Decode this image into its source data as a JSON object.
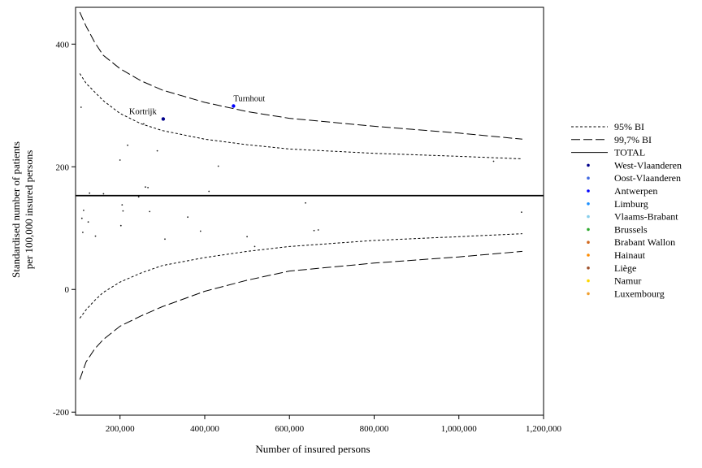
{
  "chart_data": {
    "type": "scatter",
    "title": "",
    "xlabel": "Number of insured persons",
    "ylabel": "Standardised number of patients\nper 100,000 insured persons",
    "xlim": [
      95000,
      1200000
    ],
    "ylim": [
      -205,
      460
    ],
    "xticks": [
      200000,
      400000,
      600000,
      800000,
      1000000,
      1200000
    ],
    "xtick_labels": [
      "200,000",
      "400,000",
      "600,000",
      "800,000",
      "1,000,000",
      "1,200,000"
    ],
    "yticks": [
      400,
      200,
      0,
      -200
    ],
    "ytick_labels": [
      "400",
      "200",
      "0",
      "-200"
    ],
    "grid": false,
    "legend_position": "right",
    "total": 153,
    "lines": [
      {
        "name": "95% BI",
        "style": "dotted",
        "role": "upper",
        "points": [
          [
            105000,
            352
          ],
          [
            120000,
            336
          ],
          [
            140000,
            322
          ],
          [
            160000,
            308
          ],
          [
            200000,
            287
          ],
          [
            250000,
            270
          ],
          [
            300000,
            259
          ],
          [
            400000,
            245
          ],
          [
            500000,
            236
          ],
          [
            600000,
            229
          ],
          [
            800000,
            222
          ],
          [
            1000000,
            217
          ],
          [
            1150000,
            213
          ]
        ]
      },
      {
        "name": "95% BI",
        "style": "dotted",
        "role": "lower",
        "points": [
          [
            105000,
            -47
          ],
          [
            120000,
            -33
          ],
          [
            140000,
            -18
          ],
          [
            160000,
            -5
          ],
          [
            200000,
            12
          ],
          [
            250000,
            27
          ],
          [
            300000,
            39
          ],
          [
            400000,
            52
          ],
          [
            500000,
            62
          ],
          [
            600000,
            70
          ],
          [
            800000,
            80
          ],
          [
            1000000,
            86
          ],
          [
            1150000,
            91
          ]
        ]
      },
      {
        "name": "99,7% BI",
        "style": "dashed",
        "role": "upper",
        "points": [
          [
            105000,
            452
          ],
          [
            120000,
            429
          ],
          [
            140000,
            403
          ],
          [
            160000,
            382
          ],
          [
            200000,
            360
          ],
          [
            250000,
            340
          ],
          [
            300000,
            325
          ],
          [
            400000,
            305
          ],
          [
            500000,
            290
          ],
          [
            600000,
            279
          ],
          [
            800000,
            266
          ],
          [
            1000000,
            255
          ],
          [
            1150000,
            245
          ]
        ]
      },
      {
        "name": "99,7% BI",
        "style": "dashed",
        "role": "lower",
        "points": [
          [
            105000,
            -147
          ],
          [
            120000,
            -118
          ],
          [
            140000,
            -97
          ],
          [
            160000,
            -82
          ],
          [
            200000,
            -60
          ],
          [
            250000,
            -43
          ],
          [
            300000,
            -28
          ],
          [
            400000,
            -3
          ],
          [
            500000,
            15
          ],
          [
            600000,
            30
          ],
          [
            800000,
            43
          ],
          [
            1000000,
            53
          ],
          [
            1150000,
            62
          ]
        ]
      }
    ],
    "series": [
      {
        "name": "West-Vlaanderen",
        "color": "#00008b",
        "points": [
          [
            302000,
            278
          ]
        ]
      },
      {
        "name": "Oost-Vlaanderen",
        "color": "#4169e1",
        "points": []
      },
      {
        "name": "Antwerpen",
        "color": "#0000ff",
        "points": [
          [
            468000,
            299
          ]
        ]
      },
      {
        "name": "Limburg",
        "color": "#1e90ff",
        "points": []
      },
      {
        "name": "Vlaams-Brabant",
        "color": "#87ceeb",
        "points": []
      },
      {
        "name": "Brussels",
        "color": "#2eaa2e",
        "points": []
      },
      {
        "name": "Brabant Wallon",
        "color": "#d2691e",
        "points": []
      },
      {
        "name": "Hainaut",
        "color": "#ff8c00",
        "points": []
      },
      {
        "name": "Liège",
        "color": "#a0522d",
        "points": []
      },
      {
        "name": "Namur",
        "color": "#ffd700",
        "points": []
      },
      {
        "name": "Luxembourg",
        "color": "#f0a030",
        "points": []
      }
    ],
    "other_points": [
      [
        108000,
        297
      ],
      [
        110000,
        116
      ],
      [
        112000,
        93
      ],
      [
        114000,
        129
      ],
      [
        125000,
        110
      ],
      [
        128000,
        157
      ],
      [
        142000,
        87
      ],
      [
        161000,
        156
      ],
      [
        200000,
        211
      ],
      [
        202000,
        104
      ],
      [
        205000,
        138
      ],
      [
        207000,
        128
      ],
      [
        218000,
        235
      ],
      [
        244000,
        151
      ],
      [
        256000,
        270
      ],
      [
        260000,
        167
      ],
      [
        266000,
        166
      ],
      [
        270000,
        127
      ],
      [
        288000,
        226
      ],
      [
        306000,
        82
      ],
      [
        360000,
        118
      ],
      [
        390000,
        95
      ],
      [
        410000,
        160
      ],
      [
        432000,
        201
      ],
      [
        500000,
        86
      ],
      [
        518000,
        70
      ],
      [
        638000,
        141
      ],
      [
        658000,
        96
      ],
      [
        668000,
        97
      ],
      [
        1082000,
        209
      ],
      [
        1148000,
        126
      ]
    ],
    "annotations": [
      {
        "text": "Kortrijk",
        "x": 302000,
        "y": 278
      },
      {
        "text": "Turnhout",
        "x": 468000,
        "y": 299
      }
    ],
    "legend": {
      "lines": [
        {
          "label": "95% BI",
          "style": "dotted"
        },
        {
          "label": "99,7% BI",
          "style": "dashed"
        },
        {
          "label": "TOTAL",
          "style": "solid"
        }
      ]
    }
  }
}
